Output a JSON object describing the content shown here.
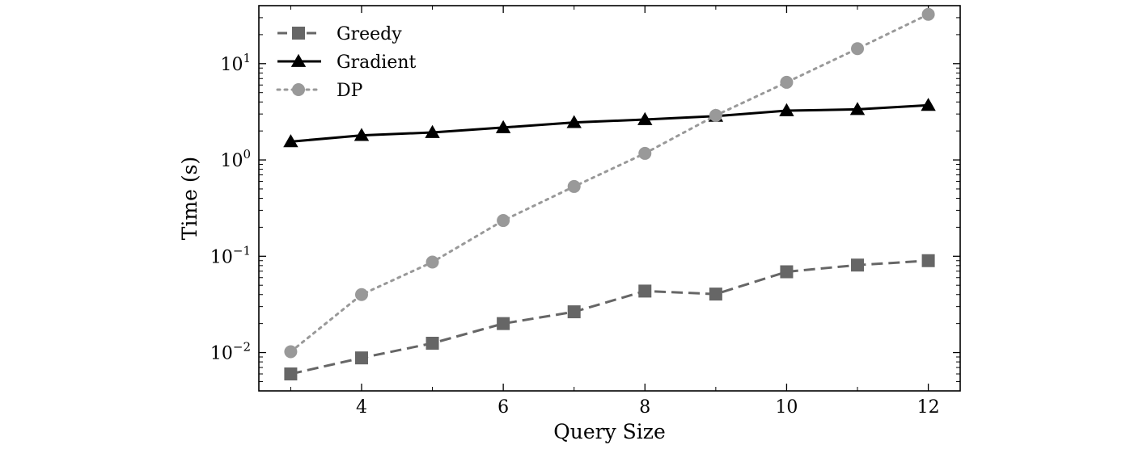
{
  "chart_data": {
    "type": "line",
    "title": "",
    "xlabel": "Query Size",
    "ylabel": "Time (s)",
    "xlim": [
      2.55,
      12.45
    ],
    "ylim": [
      0.004,
      40
    ],
    "yscale": "log",
    "grid": false,
    "legend_position": "top-left",
    "x_ticks": [
      {
        "value": 4,
        "label": "4"
      },
      {
        "value": 6,
        "label": "6"
      },
      {
        "value": 8,
        "label": "8"
      },
      {
        "value": 10,
        "label": "10"
      },
      {
        "value": 12,
        "label": "12"
      }
    ],
    "y_ticks": [
      {
        "value": 0.01,
        "base": "10",
        "exp": "−2"
      },
      {
        "value": 0.1,
        "base": "10",
        "exp": "−1"
      },
      {
        "value": 1,
        "base": "10",
        "exp": "0"
      },
      {
        "value": 10,
        "base": "10",
        "exp": "1"
      }
    ],
    "x": [
      3,
      4,
      5,
      6,
      7,
      8,
      9,
      10,
      11,
      12
    ],
    "series": [
      {
        "name": "Greedy",
        "color": "#666666",
        "marker": "square",
        "line_style": "dashed",
        "values": [
          0.006,
          0.0088,
          0.0125,
          0.02,
          0.0265,
          0.0435,
          0.0405,
          0.069,
          0.081,
          0.09
        ]
      },
      {
        "name": "Gradient",
        "color": "#000000",
        "marker": "triangle",
        "line_style": "solid",
        "values": [
          1.55,
          1.8,
          1.93,
          2.17,
          2.45,
          2.63,
          2.85,
          3.25,
          3.35,
          3.7
        ]
      },
      {
        "name": "DP",
        "color": "#999999",
        "marker": "circle",
        "line_style": "dotted",
        "values": [
          0.0102,
          0.04,
          0.087,
          0.235,
          0.53,
          1.17,
          2.9,
          6.4,
          14.3,
          32.5
        ]
      }
    ]
  }
}
